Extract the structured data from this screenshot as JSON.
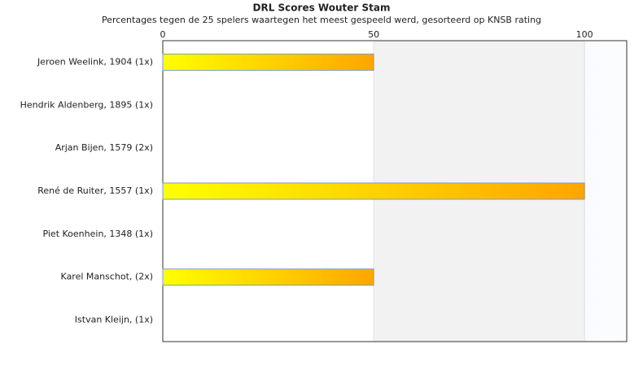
{
  "chart_data": {
    "type": "hbar",
    "title": "DRL Scores Wouter Stam",
    "subtitle": "Percentages tegen de 25 spelers waartegen het meest gespeeld werd, gesorteerd op KNSB rating",
    "categories": [
      "Jeroen Weelink, 1904 (1x)",
      "Hendrik Aldenberg, 1895 (1x)",
      "Arjan Bijen, 1579 (2x)",
      "René de Ruiter, 1557 (1x)",
      "Piet Koenhein, 1348 (1x)",
      "Karel Manschot,  (2x)",
      "Istvan Kleijn,  (1x)"
    ],
    "values": [
      50,
      0,
      0,
      100,
      0,
      50,
      0
    ],
    "color_from": "#ffff00",
    "color_to": "#ffa500",
    "bar_stroke": "#7f9db9",
    "xlim": [
      0,
      110
    ],
    "xticks": [
      0,
      50,
      100
    ],
    "grid": true
  }
}
